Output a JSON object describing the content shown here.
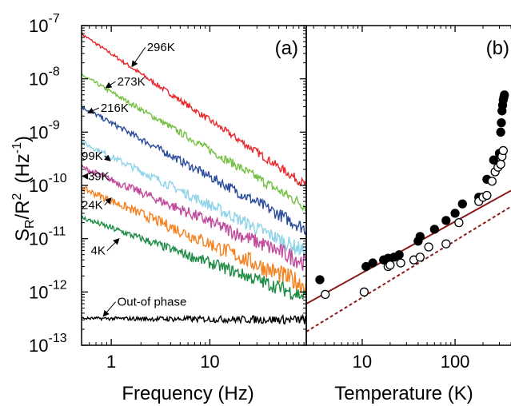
{
  "chart_data": [
    {
      "type": "line",
      "panel_label": "(a)",
      "xlabel": "Frequency (Hz)",
      "ylabel_main": "S",
      "ylabel_sub1": "R",
      "ylabel_mid": "/R",
      "ylabel_sup1": "2",
      "ylabel_unit": "(Hz",
      "ylabel_sup2": "-1",
      "ylabel_close": ")",
      "x_scale": "log",
      "y_scale": "log",
      "xlim": [
        0.5,
        95
      ],
      "ylim": [
        1e-13,
        1e-07
      ],
      "x_ticks": [
        {
          "value": 1,
          "label": "1"
        },
        {
          "value": 10,
          "label": "10"
        }
      ],
      "y_ticks": [
        {
          "value": 1e-07,
          "base": "10",
          "exp": "-7"
        },
        {
          "value": 1e-08,
          "base": "10",
          "exp": "-8"
        },
        {
          "value": 1e-09,
          "base": "10",
          "exp": "-9"
        },
        {
          "value": 1e-10,
          "base": "10",
          "exp": "-10"
        },
        {
          "value": 1e-11,
          "base": "10",
          "exp": "-11"
        },
        {
          "value": 1e-12,
          "base": "10",
          "exp": "-12"
        },
        {
          "value": 1e-13,
          "base": "10",
          "exp": "-13"
        }
      ],
      "series": [
        {
          "name": "296K",
          "color": "#e8262b",
          "f_start": 0.5,
          "s_start": 7e-08,
          "f_end": 95,
          "s_end": 1e-10,
          "noise": 0.04,
          "label_f": 2.3,
          "label_s": 3.3e-08,
          "arrow_f": 1.62,
          "arrow_s": 1.7e-08
        },
        {
          "name": "273K",
          "color": "#75c044",
          "f_start": 0.5,
          "s_start": 1.2e-08,
          "f_end": 95,
          "s_end": 4e-11,
          "noise": 0.05,
          "label_f": 1.15,
          "label_s": 7.5e-09,
          "arrow_f": 0.88,
          "arrow_s": 6.8e-09
        },
        {
          "name": "216K",
          "color": "#2b4b9b",
          "f_start": 0.5,
          "s_start": 3e-09,
          "f_end": 95,
          "s_end": 1.5e-11,
          "noise": 0.06,
          "label_f": 0.78,
          "label_s": 2.4e-09,
          "arrow_f": 0.58,
          "arrow_s": 2.3e-09
        },
        {
          "name": "99K",
          "color": "#8fd3e9",
          "f_start": 0.5,
          "s_start": 6.5e-10,
          "f_end": 95,
          "s_end": 5.5e-12,
          "noise": 0.07,
          "label_f": 0.5,
          "label_s": 3e-10,
          "arrow_f": 0.98,
          "arrow_s": 2.9e-10
        },
        {
          "name": "39K",
          "color": "#c04b9c",
          "f_start": 0.5,
          "s_start": 2.2e-10,
          "f_end": 95,
          "s_end": 3.5e-12,
          "noise": 0.08,
          "label_f": 0.58,
          "label_s": 1.25e-10,
          "arrow_f": 0.51,
          "arrow_s": 1.5e-10
        },
        {
          "name": "24K",
          "color": "#f58220",
          "f_start": 0.5,
          "s_start": 9e-11,
          "f_end": 95,
          "s_end": 1.3e-12,
          "noise": 0.09,
          "label_f": 0.5,
          "label_s": 3.6e-11,
          "arrow_f": 1.0,
          "arrow_s": 5.8e-11
        },
        {
          "name": "4K",
          "color": "#1e8c45",
          "f_start": 0.5,
          "s_start": 2.5e-11,
          "f_end": 95,
          "s_end": 8e-13,
          "noise": 0.07,
          "label_f": 0.62,
          "label_s": 5e-12,
          "arrow_f": 1.2,
          "arrow_s": 1e-11
        },
        {
          "name": "Out-of phase",
          "color": "#000000",
          "f_start": 0.5,
          "s_start": 3.2e-13,
          "f_end": 95,
          "s_end": 3e-13,
          "noise": 0.04,
          "label_f": 1.15,
          "label_s": 5.5e-13,
          "arrow_f": 0.83,
          "arrow_s": 3.5e-13
        }
      ]
    },
    {
      "type": "scatter",
      "panel_label": "(b)",
      "xlabel": "Temperature (K)",
      "x_scale": "log",
      "y_scale": "log",
      "xlim": [
        2.5,
        400
      ],
      "ylim": [
        1e-13,
        1e-07
      ],
      "x_ticks": [
        {
          "value": 10,
          "label": "10"
        },
        {
          "value": 100,
          "label": "100"
        }
      ],
      "series": [
        {
          "name": "filled",
          "marker": "filled-circle",
          "points": [
            [
              3.5,
              1.7e-12
            ],
            [
              11,
              3e-12
            ],
            [
              13,
              3.5e-12
            ],
            [
              17,
              4e-12
            ],
            [
              19,
              4.3e-12
            ],
            [
              22,
              4.5e-12
            ],
            [
              25,
              5e-12
            ],
            [
              40,
              9e-12
            ],
            [
              42,
              1.1e-11
            ],
            [
              60,
              1.5e-11
            ],
            [
              80,
              2.2e-11
            ],
            [
              100,
              3e-11
            ],
            [
              120,
              4.5e-11
            ],
            [
              180,
              6e-11
            ],
            [
              220,
              1.3e-10
            ],
            [
              260,
              3e-10
            ],
            [
              300,
              4e-10
            ],
            [
              310,
              1e-09
            ],
            [
              315,
              1.5e-09
            ],
            [
              320,
              2.5e-09
            ],
            [
              325,
              3.2e-09
            ],
            [
              330,
              4e-09
            ],
            [
              335,
              4.5e-09
            ],
            [
              340,
              5e-09
            ]
          ]
        },
        {
          "name": "open",
          "marker": "open-circle",
          "points": [
            [
              4,
              9e-13
            ],
            [
              10.5,
              1e-12
            ],
            [
              19,
              3e-12
            ],
            [
              20,
              3.2e-12
            ],
            [
              26,
              3.5e-12
            ],
            [
              36,
              4e-12
            ],
            [
              42,
              4.5e-12
            ],
            [
              52,
              7e-12
            ],
            [
              80,
              8e-12
            ],
            [
              110,
              2e-11
            ],
            [
              180,
              5e-11
            ],
            [
              200,
              6e-11
            ],
            [
              220,
              6.5e-11
            ],
            [
              250,
              1.2e-10
            ],
            [
              270,
              1.8e-10
            ],
            [
              290,
              2.2e-10
            ],
            [
              310,
              2.5e-10
            ],
            [
              320,
              3.5e-10
            ],
            [
              330,
              4.5e-10
            ]
          ]
        },
        {
          "name": "fit-solid",
          "line": "solid",
          "color": "#8b1a1a",
          "x": [
            2.5,
            400
          ],
          "y": [
            6e-13,
            8e-11
          ]
        },
        {
          "name": "fit-dashed",
          "line": "dashed",
          "color": "#8b1a1a",
          "x": [
            2.5,
            400
          ],
          "y": [
            1.8e-13,
            4e-11
          ]
        }
      ]
    }
  ]
}
